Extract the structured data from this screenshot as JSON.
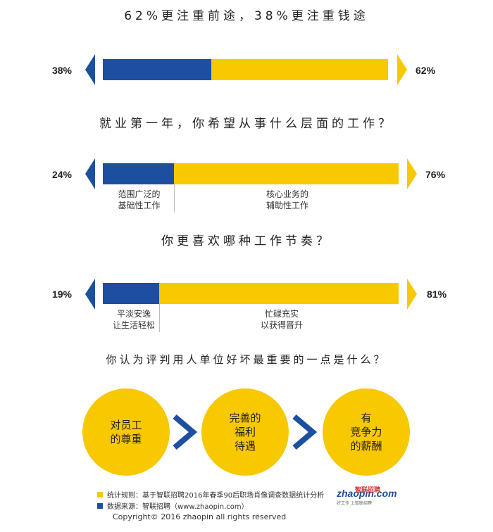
{
  "chart_data": [
    {
      "type": "bar",
      "title": "62%更注重前途，38%更注重钱途",
      "series": [
        {
          "name": "",
          "values": [
            38
          ],
          "label": "38%"
        },
        {
          "name": "",
          "values": [
            62
          ],
          "label": "62%"
        }
      ]
    },
    {
      "type": "bar",
      "title": "就业第一年，你希望从事什么层面的工作？",
      "series": [
        {
          "name": "范围广泛的基础性工作",
          "values": [
            24
          ],
          "label": "24%"
        },
        {
          "name": "核心业务的辅助性工作",
          "values": [
            76
          ],
          "label": "76%"
        }
      ]
    },
    {
      "type": "bar",
      "title": "你更喜欢哪种工作节奏？",
      "series": [
        {
          "name": "平淡安逸让生活轻松",
          "values": [
            19
          ],
          "label": "19%"
        },
        {
          "name": "忙碌充实以获得晋升",
          "values": [
            81
          ],
          "label": "81%"
        }
      ]
    }
  ],
  "q1": {
    "title": "62%更注重前途，38%更注重钱途",
    "left_pct": "38%",
    "right_pct": "62%"
  },
  "q2": {
    "title": "就业第一年，你希望从事什么层面的工作？",
    "left_pct": "24%",
    "right_pct": "76%",
    "left_label_1": "范围广泛的",
    "left_label_2": "基础性工作",
    "right_label_1": "核心业务的",
    "right_label_2": "辅助性工作"
  },
  "q3": {
    "title": "你更喜欢哪种工作节奏？",
    "left_pct": "19%",
    "right_pct": "81%",
    "left_label_1": "平淡安逸",
    "left_label_2": "让生活轻松",
    "right_label_1": "忙碌充实",
    "right_label_2": "以获得晋升"
  },
  "q4": {
    "title": "你认为评判用人单位好坏最重要的一点是什么？",
    "items": [
      {
        "line1": "对员工",
        "line2": "的尊重",
        "line3": ""
      },
      {
        "line1": "完善的",
        "line2": "福利",
        "line3": "待遇"
      },
      {
        "line1": "有",
        "line2": "竞争力",
        "line3": "的薪酬"
      }
    ]
  },
  "colors": {
    "blue": "#1d4fa1",
    "yellow": "#f8c800"
  },
  "legend": {
    "rule": "统计规则：基于智联招聘2016年春季90后职场肖像调查数据统计分析",
    "source": "数据来源：智联招聘（www.zhaopin.com）"
  },
  "logo": {
    "main": "zhaopin.com",
    "cn": "智联招聘",
    "sub": "好工作  上智联招聘"
  },
  "copyright": "Copyright© 2016 zhaopin all rights reserved"
}
